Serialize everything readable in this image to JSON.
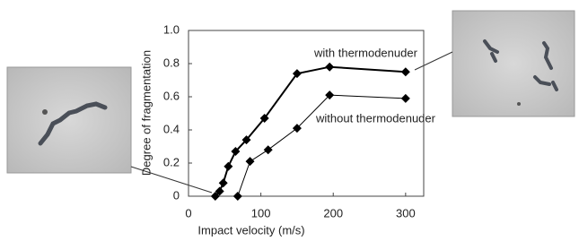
{
  "chart_data": {
    "type": "line",
    "x_label": "Impact velocity (m/s)",
    "y_label": "Degree of fragmentation",
    "series": [
      {
        "name": "with thermodenuder",
        "color": "#000000",
        "width": 2,
        "x": [
          37,
          43,
          48,
          55,
          65,
          80,
          105,
          150,
          195,
          300
        ],
        "values": [
          0,
          0.03,
          0.08,
          0.18,
          0.27,
          0.34,
          0.47,
          0.74,
          0.78,
          0.75
        ]
      },
      {
        "name": "without thermodenuder",
        "color": "#000000",
        "width": 1,
        "x": [
          68,
          85,
          110,
          150,
          195,
          300
        ],
        "values": [
          0,
          0.21,
          0.28,
          0.41,
          0.61,
          0.59
        ]
      }
    ],
    "xlim": [
      0,
      325
    ],
    "xticks": [
      0,
      100,
      200,
      300
    ],
    "ylim": [
      0,
      1
    ],
    "yticks": [
      0,
      0.2,
      0.4,
      0.6,
      0.8,
      {
        "value": 1,
        "label": "1.0"
      }
    ]
  }
}
